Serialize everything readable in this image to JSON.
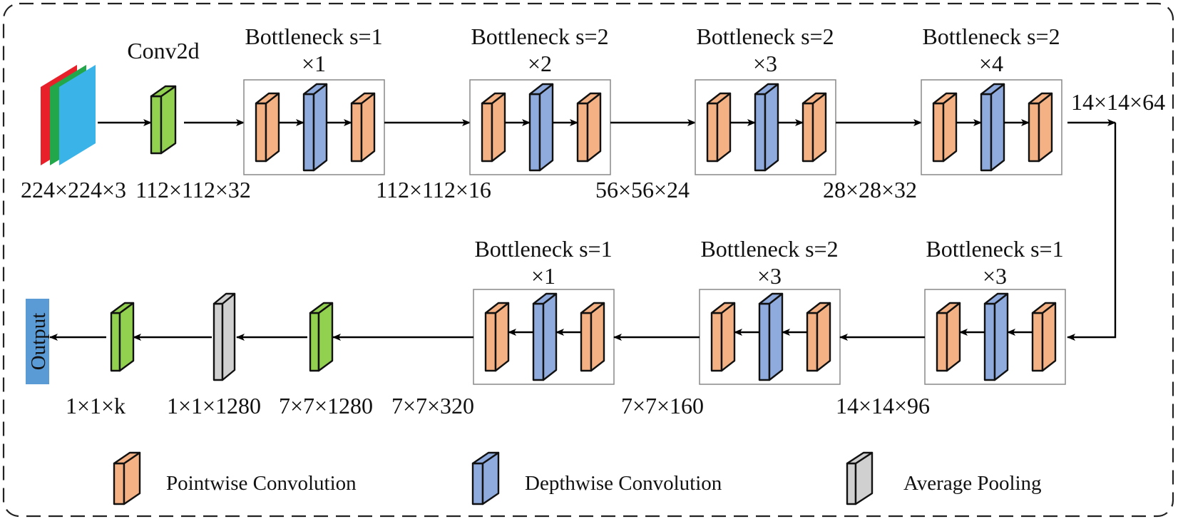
{
  "colors": {
    "pointwise": "#F4B183",
    "depthwise": "#8FAADC",
    "conv": "#92D050",
    "pool": "#D0D0D0",
    "input_red": "#E8202A",
    "input_green": "#22A84A",
    "input_blue": "#3AB4E8",
    "output_box": "#5B9BD5"
  },
  "top_row": {
    "conv_label": "Conv2d",
    "bottlenecks": [
      {
        "title": "Bottleneck s=1",
        "repeat": "×1"
      },
      {
        "title": "Bottleneck s=2",
        "repeat": "×2"
      },
      {
        "title": "Bottleneck s=2",
        "repeat": "×3"
      },
      {
        "title": "Bottleneck s=2",
        "repeat": "×4"
      }
    ],
    "dims": [
      "224×224×3",
      "112×112×32",
      "112×112×16",
      "56×56×24",
      "28×28×32"
    ],
    "turn_dim": "14×14×64"
  },
  "bottom_row": {
    "bottlenecks": [
      {
        "title": "Bottleneck s=1",
        "repeat": "×1"
      },
      {
        "title": "Bottleneck s=2",
        "repeat": "×3"
      },
      {
        "title": "Bottleneck s=1",
        "repeat": "×3"
      }
    ],
    "dims": [
      "1×1×k",
      "1×1×1280",
      "7×7×1280",
      "7×7×320",
      "7×7×160",
      "14×14×96"
    ],
    "output_label": "Output"
  },
  "legend": [
    {
      "kind": "pointwise",
      "label": "Pointwise Convolution"
    },
    {
      "kind": "depthwise",
      "label": "Depthwise Convolution"
    },
    {
      "kind": "pool",
      "label": "Average Pooling"
    }
  ]
}
